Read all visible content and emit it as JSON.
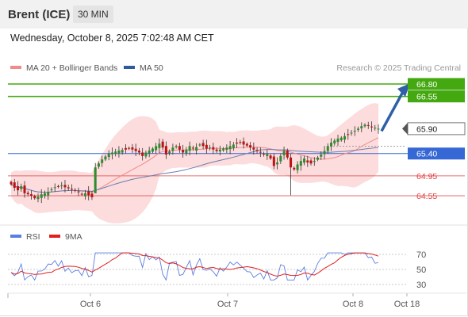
{
  "header": {
    "title": "Brent (ICE)",
    "timeframe": "30 MIN"
  },
  "datetime": "Wednesday, October 8, 2025 7:02:48 AM CET",
  "legend": {
    "ma20": {
      "label": "MA 20 + Bollinger Bands",
      "color": "#f28a8a"
    },
    "ma50": {
      "label": "MA 50",
      "color": "#2f5a9c"
    }
  },
  "research": "Research © 2025 Trading Central",
  "rsi_legend": {
    "rsi": {
      "label": "RSI",
      "color": "#5b7fe0"
    },
    "ma9": {
      "label": "9MA",
      "color": "#e02020"
    }
  },
  "x_axis_labels": [
    "Oct 6",
    "Oct 7",
    "Oct 8",
    "Oct 18"
  ],
  "colors": {
    "resistance": "#44a810",
    "pivot": "#3568d4",
    "support": "#e04040",
    "up": "#2e8b2e",
    "down": "#c01010",
    "arrow": "#2f5fa6",
    "band": "#fbd6d6"
  },
  "chart_data": [
    {
      "type": "candlestick",
      "title": "Brent (ICE)",
      "timeframe": "30 MIN",
      "y_range": [
        64.15,
        67.05
      ],
      "levels": [
        {
          "value": "66.80",
          "kind": "resistance"
        },
        {
          "value": "66.55",
          "kind": "resistance"
        },
        {
          "value": "65.90",
          "kind": "last"
        },
        {
          "value": "65.40",
          "kind": "pivot"
        },
        {
          "value": "64.95",
          "kind": "support"
        },
        {
          "value": "64.55",
          "kind": "support"
        }
      ],
      "target_arrow": {
        "from": 65.9,
        "to": 66.8
      },
      "x_ticks": [
        "Oct 6",
        "Oct 7",
        "Oct 8",
        "Oct 18"
      ],
      "closes": [
        64.78,
        64.71,
        64.66,
        64.74,
        64.6,
        64.58,
        64.55,
        64.5,
        64.53,
        64.58,
        64.6,
        64.63,
        64.68,
        64.72,
        64.73,
        64.76,
        64.72,
        64.7,
        64.68,
        64.66,
        64.62,
        64.58,
        64.6,
        64.56,
        64.52,
        65.12,
        65.2,
        65.28,
        65.34,
        65.4,
        65.42,
        65.44,
        65.46,
        65.47,
        65.48,
        65.5,
        65.48,
        65.45,
        65.42,
        65.35,
        65.42,
        65.46,
        65.5,
        65.55,
        65.6,
        65.52,
        65.38,
        65.44,
        65.52,
        65.55,
        65.48,
        65.42,
        65.48,
        65.55,
        65.5,
        65.53,
        65.58,
        65.55,
        65.5,
        65.52,
        65.48,
        65.45,
        65.48,
        65.5,
        65.52,
        65.55,
        65.58,
        65.6,
        65.62,
        65.58,
        65.56,
        65.52,
        65.48,
        65.45,
        65.42,
        65.38,
        65.4,
        65.3,
        65.15,
        65.22,
        65.35,
        65.45,
        65.32,
        65.12,
        65.08,
        65.18,
        65.25,
        65.3,
        65.22,
        65.2,
        65.25,
        65.32,
        65.38,
        65.45,
        65.55,
        65.62,
        65.66,
        65.7,
        65.72,
        65.75,
        65.78,
        65.82,
        65.86,
        65.9,
        65.95,
        65.98,
        65.96,
        65.94,
        65.92,
        65.9
      ],
      "rsi": {
        "y_ticks": [
          70,
          50,
          30
        ]
      }
    }
  ]
}
